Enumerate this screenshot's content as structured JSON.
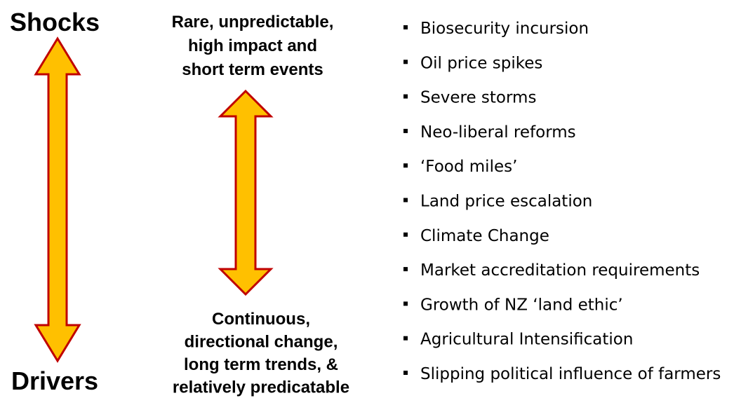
{
  "top_label": "Shocks",
  "bottom_label": "Drivers",
  "top_description": [
    "Rare, unpredictable,",
    "high impact and",
    "short term events"
  ],
  "bottom_description": [
    "Continuous,",
    "directional change,",
    "long term trends, &",
    "relatively predicatable"
  ],
  "items": [
    "Biosecurity incursion",
    "Oil price spikes",
    "Severe storms",
    "Neo-liberal reforms",
    "‘Food miles’",
    "Land price escalation",
    "Climate Change",
    "Market accreditation requirements",
    "Growth of NZ ‘land ethic’",
    "Agricultural Intensification",
    "Slipping political influence of farmers"
  ]
}
